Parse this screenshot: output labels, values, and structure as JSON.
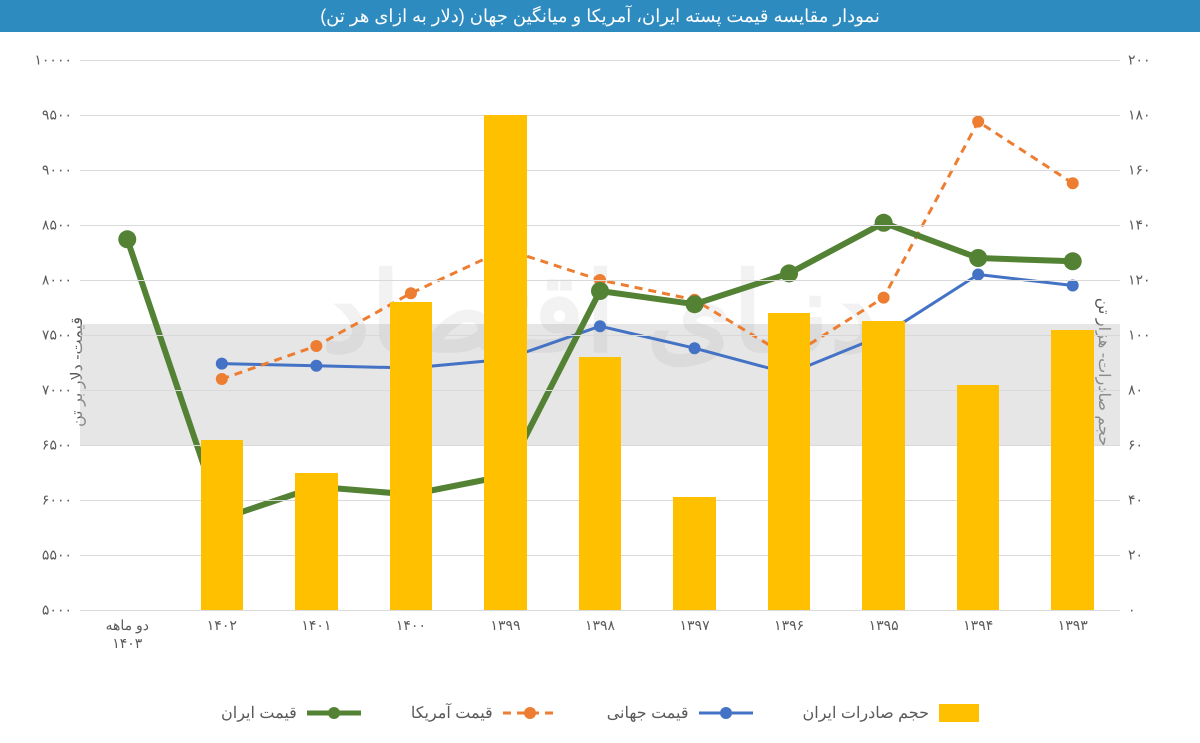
{
  "title": "نمودار مقایسه قیمت پسته ایران، آمریکا و میانگین جهان (دلار به ازای هر تن)",
  "title_bg": "#2e8bc0",
  "background": "#ffffff",
  "grid_color": "#d9d9d9",
  "text_color": "#595959",
  "watermark_text": "دنیای اقتصاد",
  "axis_left": {
    "title": "قیمت- دلار بر تن",
    "min": 5000,
    "max": 10000,
    "step": 500
  },
  "axis_right": {
    "title": "حجم صادرات- هزار تن",
    "min": 0,
    "max": 200,
    "step": 20
  },
  "categories": [
    "۱۳۹۳",
    "۱۳۹۴",
    "۱۳۹۵",
    "۱۳۹۶",
    "۱۳۹۷",
    "۱۳۹۸",
    "۱۳۹۹",
    "۱۴۰۰",
    "۱۴۰۱",
    "۱۴۰۲",
    "دو ماهه\n۱۴۰۳"
  ],
  "bars": {
    "label": "حجم صادرات ایران",
    "axis": "right",
    "color": "#ffc000",
    "width_frac": 0.45,
    "values": [
      102,
      82,
      105,
      108,
      41,
      92,
      180,
      112,
      50,
      62,
      null
    ]
  },
  "lines": [
    {
      "key": "world",
      "label": "قیمت جهانی",
      "axis": "left",
      "color": "#4472c4",
      "dash": "none",
      "width": 3,
      "marker": "circle",
      "marker_size": 6,
      "values": [
        7950,
        8050,
        7500,
        7150,
        7380,
        7580,
        7280,
        7200,
        7220,
        7240,
        null
      ]
    },
    {
      "key": "usa",
      "label": "قیمت آمریکا",
      "axis": "left",
      "color": "#ed7d31",
      "dash": "8 6",
      "width": 3,
      "marker": "circle",
      "marker_size": 6,
      "values": [
        8880,
        9440,
        7840,
        7300,
        7820,
        8000,
        8280,
        7880,
        7400,
        7100,
        null
      ]
    },
    {
      "key": "iran",
      "label": "قیمت ایران",
      "axis": "left",
      "color": "#548235",
      "dash": "none",
      "width": 6,
      "marker": "circle",
      "marker_size": 9,
      "values": [
        8170,
        8200,
        8520,
        8060,
        7780,
        7900,
        6220,
        6050,
        6120,
        5830,
        8370
      ]
    }
  ],
  "legend_order": [
    "bars",
    "world",
    "usa",
    "iran"
  ],
  "tick_labels_left": [
    "۵۰۰۰",
    "۵۵۰۰",
    "۶۰۰۰",
    "۶۵۰۰",
    "۷۰۰۰",
    "۷۵۰۰",
    "۸۰۰۰",
    "۸۵۰۰",
    "۹۰۰۰",
    "۹۵۰۰",
    "۱۰۰۰۰"
  ],
  "tick_labels_right": [
    "۰",
    "۲۰",
    "۴۰",
    "۶۰",
    "۸۰",
    "۱۰۰",
    "۱۲۰",
    "۱۴۰",
    "۱۶۰",
    "۱۸۰",
    "۲۰۰"
  ]
}
